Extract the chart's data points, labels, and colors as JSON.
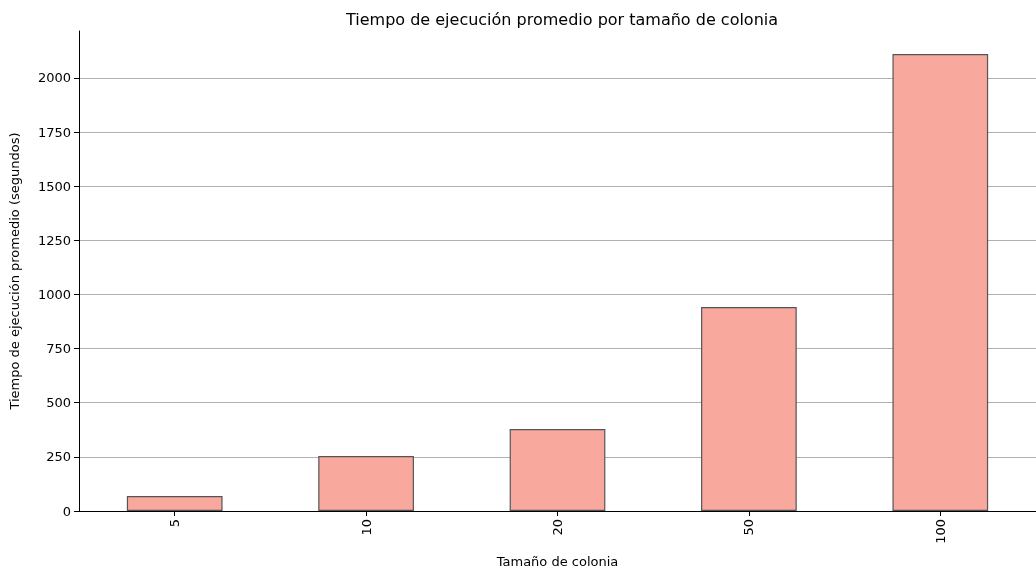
{
  "chart_data": {
    "type": "bar",
    "title": "Tiempo de ejecución promedio por tamaño de colonia",
    "xlabel": "Tamaño de colonia",
    "ylabel": "Tiempo de ejecución promedio (segundos)",
    "categories": [
      "5",
      "10",
      "20",
      "50",
      "100"
    ],
    "values": [
      69,
      254,
      379,
      942,
      2111
    ],
    "color": "#f9a89e",
    "ylim": [
      0,
      2217
    ],
    "yticks": [
      0,
      250,
      500,
      750,
      1000,
      1250,
      1500,
      1750,
      2000
    ],
    "grid": "y"
  }
}
